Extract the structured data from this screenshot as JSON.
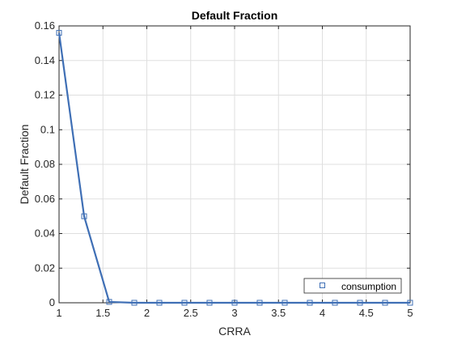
{
  "chart_data": {
    "type": "line",
    "title": "Default Fraction",
    "xlabel": "CRRA",
    "ylabel": "Default Fraction",
    "xlim": [
      1,
      5
    ],
    "ylim": [
      0,
      0.16
    ],
    "xticks": [
      1,
      1.5,
      2,
      2.5,
      3,
      3.5,
      4,
      4.5,
      5
    ],
    "yticks": [
      0,
      0.02,
      0.04,
      0.06,
      0.08,
      0.1,
      0.12,
      0.14,
      0.16
    ],
    "xtick_labels": [
      "1",
      "1.5",
      "2",
      "2.5",
      "3",
      "3.5",
      "4",
      "4.5",
      "5"
    ],
    "ytick_labels": [
      "0",
      "0.02",
      "0.04",
      "0.06",
      "0.08",
      "0.1",
      "0.12",
      "0.14",
      "0.16"
    ],
    "grid": true,
    "legend_position": "bottom-right",
    "series": [
      {
        "name": "consumption",
        "color": "#3f6fb5",
        "marker": "square",
        "x": [
          1.0,
          1.2857,
          1.5714,
          1.8571,
          2.1429,
          2.4286,
          2.7143,
          3.0,
          3.2857,
          3.5714,
          3.8571,
          4.1429,
          4.4286,
          4.7143,
          5.0
        ],
        "y": [
          0.156,
          0.05,
          0.0005,
          0,
          0,
          0,
          0,
          0,
          0,
          0,
          0,
          0,
          0,
          0,
          0
        ]
      }
    ]
  }
}
